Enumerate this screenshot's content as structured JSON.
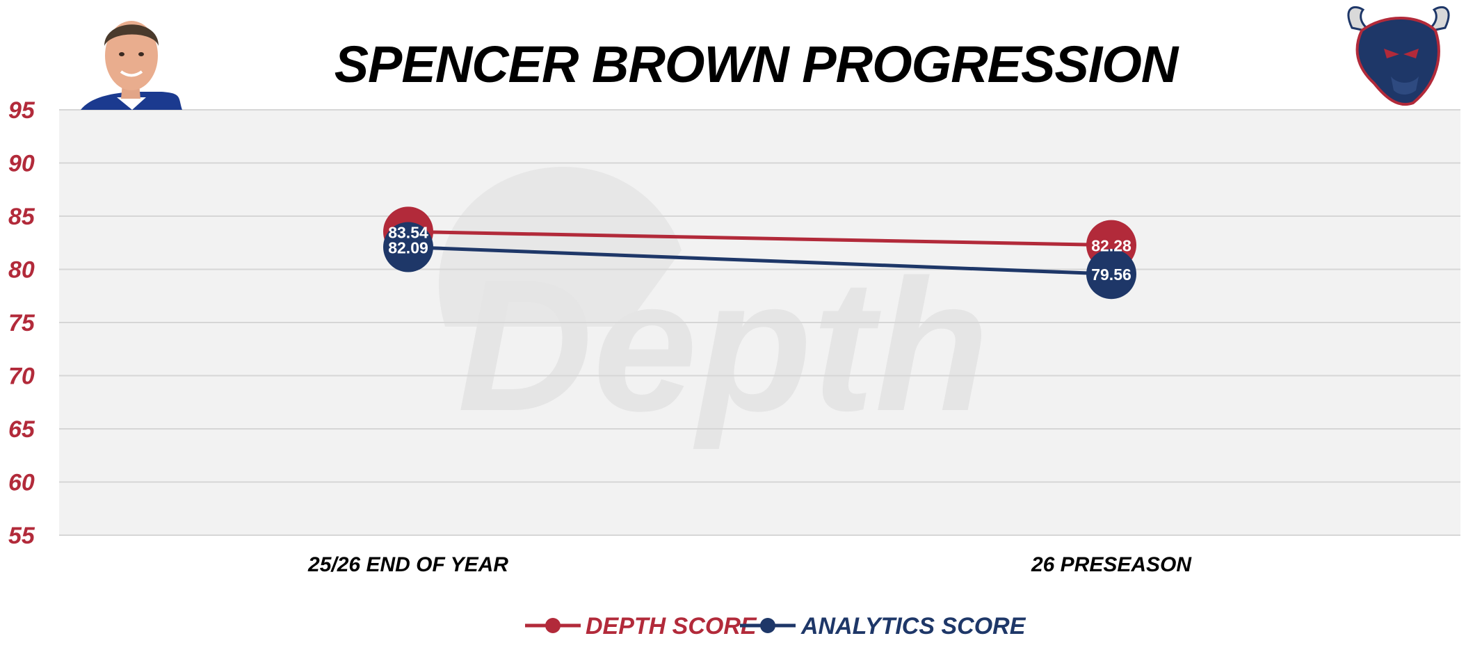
{
  "chart_data": {
    "type": "line",
    "title": "SPENCER BROWN PROGRESSION",
    "categories": [
      "25/26 END OF YEAR",
      "26 PRESEASON"
    ],
    "series": [
      {
        "name": "DEPTH SCORE",
        "values": [
          83.54,
          82.28
        ],
        "color": "#b22a3a"
      },
      {
        "name": "ANALYTICS SCORE",
        "values": [
          82.09,
          79.56
        ],
        "color": "#1e3768"
      }
    ],
    "ylim": [
      55,
      95
    ],
    "yticks": [
      95,
      90,
      85,
      80,
      75,
      70,
      65,
      60,
      55
    ],
    "grid": true,
    "legend_position": "bottom-center",
    "xlabel": "",
    "ylabel": ""
  },
  "watermark": "Depth",
  "colors": {
    "plot_background": "#f2f2f2",
    "gridline": "#d6d6d6",
    "tick_color": "#b22a3a"
  },
  "images": {
    "player_photo": "player-headshot",
    "team_logo": "bull-logo-icon"
  }
}
